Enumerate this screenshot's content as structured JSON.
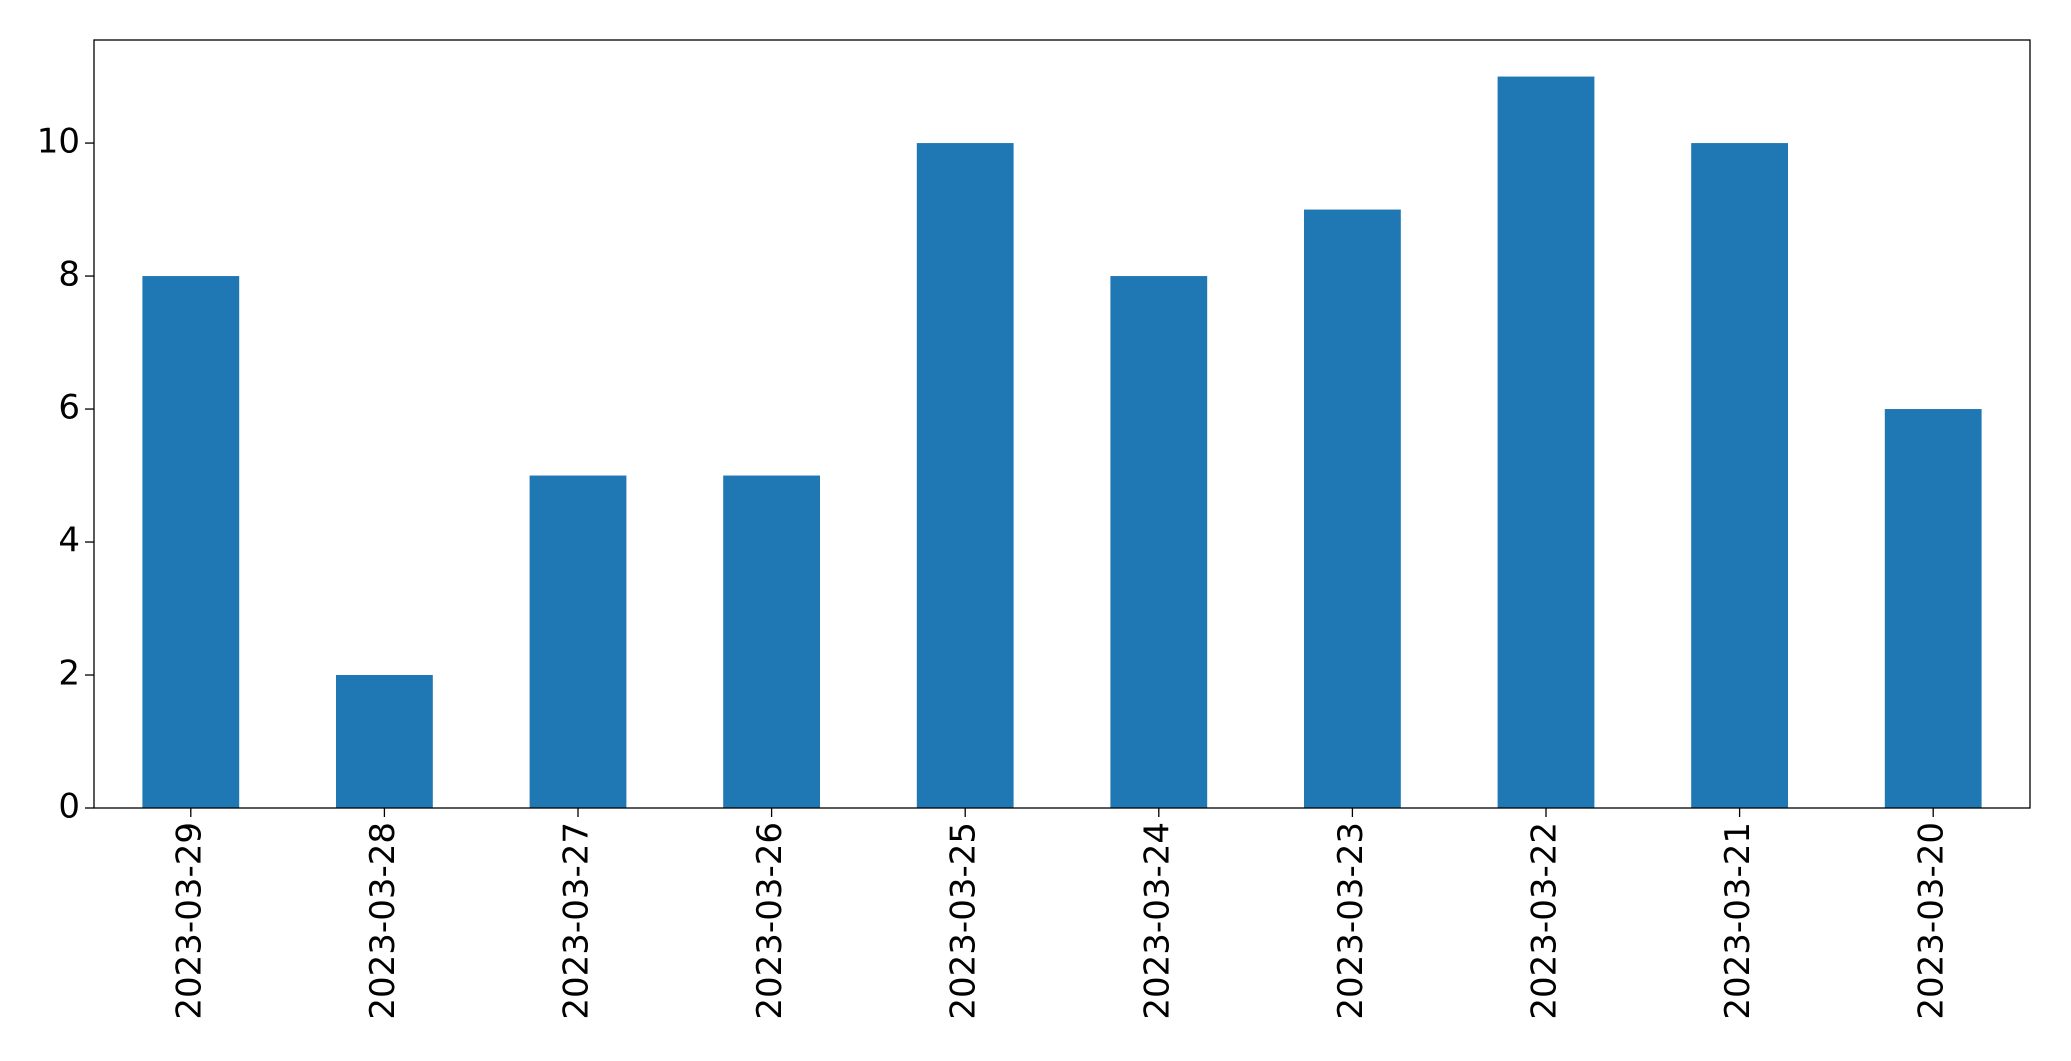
{
  "chart_data": {
    "type": "bar",
    "categories": [
      "2023-03-29",
      "2023-03-28",
      "2023-03-27",
      "2023-03-26",
      "2023-03-25",
      "2023-03-24",
      "2023-03-23",
      "2023-03-22",
      "2023-03-21",
      "2023-03-20"
    ],
    "values": [
      8,
      2,
      5,
      5,
      10,
      8,
      9,
      11,
      10,
      6
    ],
    "color": "#1f77b4",
    "ylim": [
      0,
      11.55
    ],
    "yticks": [
      0,
      2,
      4,
      6,
      8,
      10
    ],
    "grid": false
  }
}
